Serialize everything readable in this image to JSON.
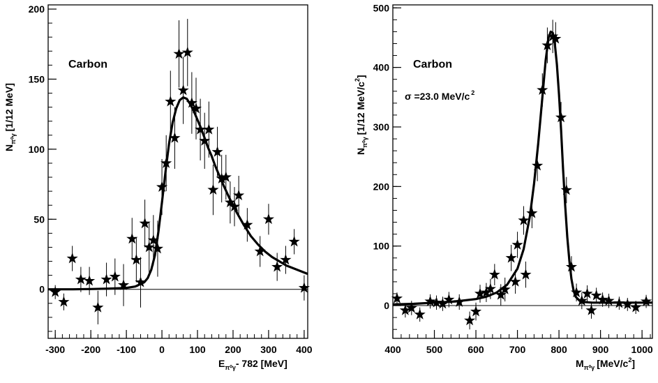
{
  "chart_data": [
    {
      "type": "scatter",
      "label": "Carbon",
      "annotation": "",
      "xlabel": "E",
      "xlabel_sub": "π⁰γ",
      "xlabel_suffix": "- 782 [MeV]",
      "ylabel": "N",
      "ylabel_sub": "π⁰γ",
      "ylabel_suffix": "[1/12 MeV]",
      "xlim": [
        -320,
        410
      ],
      "ylim": [
        -35,
        203
      ],
      "xticks": [
        -300,
        -200,
        -100,
        0,
        100,
        200,
        300,
        400
      ],
      "yticks": [
        0,
        50,
        100,
        150,
        200
      ],
      "marker": "star",
      "points": [
        {
          "x": -300,
          "y": -2,
          "err": 5
        },
        {
          "x": -276,
          "y": -9,
          "err": 6
        },
        {
          "x": -252,
          "y": 22,
          "err": 9
        },
        {
          "x": -228,
          "y": 7,
          "err": 9
        },
        {
          "x": -204,
          "y": 6,
          "err": 10
        },
        {
          "x": -180,
          "y": -13,
          "err": 12
        },
        {
          "x": -156,
          "y": 7,
          "err": 12
        },
        {
          "x": -132,
          "y": 9,
          "err": 13
        },
        {
          "x": -108,
          "y": 3,
          "err": 15
        },
        {
          "x": -84,
          "y": 36,
          "err": 15
        },
        {
          "x": -72,
          "y": 21,
          "err": 16
        },
        {
          "x": -60,
          "y": 5,
          "err": 18
        },
        {
          "x": -48,
          "y": 47,
          "err": 17
        },
        {
          "x": -36,
          "y": 30,
          "err": 18
        },
        {
          "x": -24,
          "y": 35,
          "err": 18
        },
        {
          "x": -12,
          "y": 29,
          "err": 20
        },
        {
          "x": 0,
          "y": 73,
          "err": 20
        },
        {
          "x": 12,
          "y": 90,
          "err": 20
        },
        {
          "x": 24,
          "y": 134,
          "err": 22
        },
        {
          "x": 36,
          "y": 108,
          "err": 22
        },
        {
          "x": 48,
          "y": 168,
          "err": 24
        },
        {
          "x": 60,
          "y": 142,
          "err": 24
        },
        {
          "x": 72,
          "y": 169,
          "err": 24
        },
        {
          "x": 84,
          "y": 133,
          "err": 22
        },
        {
          "x": 96,
          "y": 129,
          "err": 22
        },
        {
          "x": 108,
          "y": 114,
          "err": 22
        },
        {
          "x": 120,
          "y": 106,
          "err": 20
        },
        {
          "x": 132,
          "y": 114,
          "err": 20
        },
        {
          "x": 144,
          "y": 71,
          "err": 18
        },
        {
          "x": 156,
          "y": 98,
          "err": 18
        },
        {
          "x": 168,
          "y": 79,
          "err": 17
        },
        {
          "x": 180,
          "y": 80,
          "err": 16
        },
        {
          "x": 192,
          "y": 62,
          "err": 15
        },
        {
          "x": 204,
          "y": 59,
          "err": 14
        },
        {
          "x": 216,
          "y": 67,
          "err": 14
        },
        {
          "x": 240,
          "y": 46,
          "err": 12
        },
        {
          "x": 276,
          "y": 27,
          "err": 11
        },
        {
          "x": 300,
          "y": 50,
          "err": 11
        },
        {
          "x": 324,
          "y": 16,
          "err": 10
        },
        {
          "x": 348,
          "y": 21,
          "err": 10
        },
        {
          "x": 372,
          "y": 34,
          "err": 9
        },
        {
          "x": 400,
          "y": 1,
          "err": 9
        }
      ],
      "fit": {
        "x": [
          -320,
          -300,
          -250,
          -200,
          -150,
          -100,
          -75,
          -50,
          -40,
          -30,
          -20,
          -10,
          0,
          10,
          20,
          30,
          40,
          50,
          60,
          70,
          80,
          90,
          100,
          110,
          120,
          130,
          140,
          150,
          170,
          190,
          210,
          230,
          250,
          270,
          290,
          310,
          330,
          350,
          370,
          390,
          410
        ],
        "y": [
          0,
          0,
          0,
          0.2,
          0.5,
          1,
          2,
          5,
          8,
          14,
          24,
          41,
          62,
          84,
          104,
          119,
          129,
          135,
          137,
          136,
          132,
          127,
          121,
          115,
          108,
          101,
          95,
          88,
          76,
          65,
          55,
          46,
          38,
          32,
          27,
          23,
          20,
          17,
          15,
          13,
          11
        ]
      },
      "baseline": 0
    },
    {
      "type": "scatter",
      "label": "Carbon",
      "annotation": "σ =23.0 MeV/c",
      "annotation_sup": "2",
      "xlabel": "M",
      "xlabel_sub": "π⁰γ",
      "xlabel_suffix": "[MeV/c",
      "xlabel_sup": "2",
      "xlabel_end": "]",
      "ylabel": "N",
      "ylabel_sub": "π⁰γ",
      "ylabel_suffix": "[1/12 MeV/c",
      "ylabel_sup": "2",
      "ylabel_end": "]",
      "xlim": [
        400,
        1025
      ],
      "ylim": [
        -55,
        505
      ],
      "xticks": [
        400,
        500,
        600,
        700,
        800,
        900,
        1000
      ],
      "yticks": [
        0,
        100,
        200,
        300,
        400,
        500
      ],
      "marker": "star",
      "points": [
        {
          "x": 410,
          "y": 12,
          "err": 10
        },
        {
          "x": 430,
          "y": -8,
          "err": 12
        },
        {
          "x": 445,
          "y": -4,
          "err": 12
        },
        {
          "x": 465,
          "y": -15,
          "err": 12
        },
        {
          "x": 490,
          "y": 7,
          "err": 12
        },
        {
          "x": 505,
          "y": 5,
          "err": 12
        },
        {
          "x": 520,
          "y": 3,
          "err": 12
        },
        {
          "x": 535,
          "y": 10,
          "err": 13
        },
        {
          "x": 560,
          "y": 6,
          "err": 13
        },
        {
          "x": 585,
          "y": -25,
          "err": 15
        },
        {
          "x": 600,
          "y": -10,
          "err": 15
        },
        {
          "x": 610,
          "y": 20,
          "err": 15
        },
        {
          "x": 625,
          "y": 22,
          "err": 16
        },
        {
          "x": 635,
          "y": 28,
          "err": 17
        },
        {
          "x": 645,
          "y": 52,
          "err": 18
        },
        {
          "x": 660,
          "y": 18,
          "err": 18
        },
        {
          "x": 670,
          "y": 27,
          "err": 20
        },
        {
          "x": 685,
          "y": 80,
          "err": 22
        },
        {
          "x": 695,
          "y": 40,
          "err": 20
        },
        {
          "x": 700,
          "y": 102,
          "err": 22
        },
        {
          "x": 715,
          "y": 143,
          "err": 24
        },
        {
          "x": 720,
          "y": 52,
          "err": 22
        },
        {
          "x": 735,
          "y": 155,
          "err": 25
        },
        {
          "x": 748,
          "y": 235,
          "err": 26
        },
        {
          "x": 760,
          "y": 362,
          "err": 28
        },
        {
          "x": 772,
          "y": 437,
          "err": 30
        },
        {
          "x": 785,
          "y": 452,
          "err": 28
        },
        {
          "x": 792,
          "y": 448,
          "err": 28
        },
        {
          "x": 805,
          "y": 316,
          "err": 26
        },
        {
          "x": 818,
          "y": 194,
          "err": 22
        },
        {
          "x": 830,
          "y": 65,
          "err": 18
        },
        {
          "x": 842,
          "y": 22,
          "err": 15
        },
        {
          "x": 855,
          "y": 8,
          "err": 14
        },
        {
          "x": 868,
          "y": 20,
          "err": 14
        },
        {
          "x": 878,
          "y": -8,
          "err": 14
        },
        {
          "x": 890,
          "y": 17,
          "err": 13
        },
        {
          "x": 905,
          "y": 10,
          "err": 12
        },
        {
          "x": 920,
          "y": 8,
          "err": 12
        },
        {
          "x": 945,
          "y": 4,
          "err": 11
        },
        {
          "x": 965,
          "y": 2,
          "err": 11
        },
        {
          "x": 985,
          "y": -3,
          "err": 11
        },
        {
          "x": 1010,
          "y": 7,
          "err": 11
        }
      ],
      "fit": {
        "x": [
          400,
          450,
          500,
          550,
          600,
          625,
          650,
          675,
          700,
          715,
          730,
          740,
          750,
          760,
          768,
          775,
          780,
          785,
          790,
          795,
          800,
          805,
          810,
          815,
          820,
          825,
          830,
          835,
          840,
          850,
          860,
          880,
          920,
          960,
          1000,
          1025
        ],
        "y": [
          2,
          3,
          5,
          7,
          11,
          15,
          22,
          35,
          62,
          95,
          150,
          205,
          272,
          350,
          412,
          450,
          460,
          458,
          440,
          405,
          355,
          295,
          228,
          168,
          115,
          75,
          45,
          26,
          15,
          8,
          6,
          5,
          5,
          5,
          5,
          5
        ]
      },
      "baseline": 0
    }
  ]
}
